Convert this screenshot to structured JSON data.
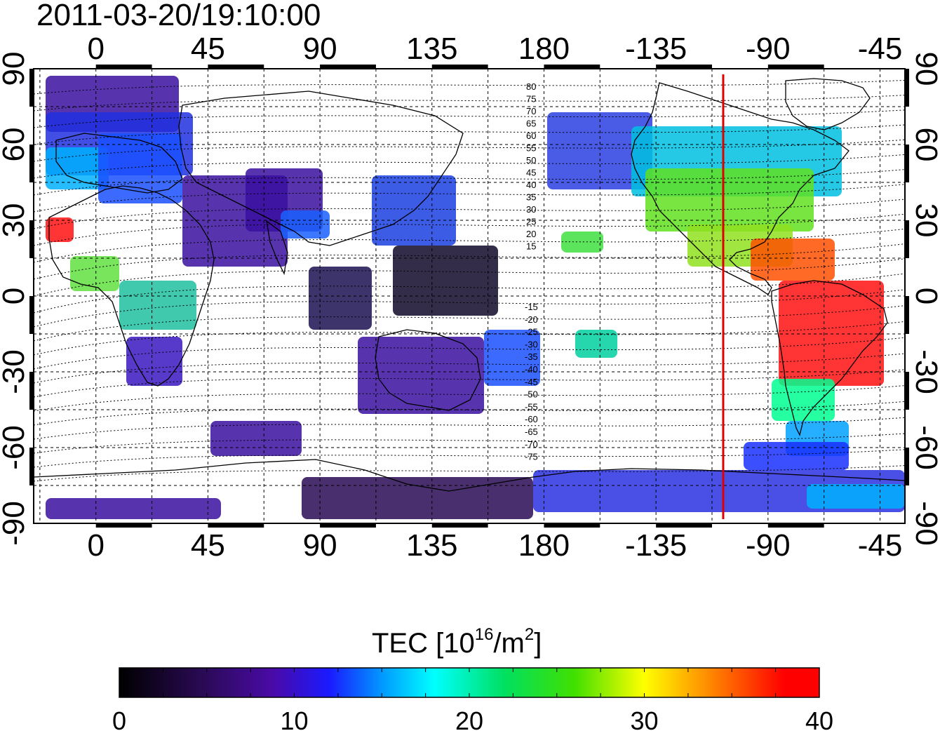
{
  "title": "2011-03-20/19:10:00",
  "map": {
    "lon_ticks": [
      "0",
      "45",
      "90",
      "135",
      "180",
      "-135",
      "-90",
      "-45"
    ],
    "lat_ticks": [
      "90",
      "60",
      "30",
      "0",
      "-30",
      "-60",
      "-90"
    ],
    "lon_range_east": [
      -25,
      325
    ],
    "lat_range": [
      -90,
      90
    ],
    "grid": true,
    "meridian_marker_lon": -108,
    "meridian_marker_color": "#e00000",
    "contour_labels_north": [
      "80",
      "75",
      "70",
      "65",
      "60",
      "55",
      "50",
      "45",
      "40",
      "35",
      "30",
      "25",
      "20",
      "15"
    ],
    "contour_labels_south": [
      "-15",
      "-20",
      "-25",
      "-30",
      "-35",
      "-40",
      "-45",
      "-50",
      "-55",
      "-60",
      "-65",
      "-70",
      "-75"
    ]
  },
  "colorbar": {
    "label_main": "TEC  [10",
    "label_sup": "16",
    "label_mid": "/m",
    "label_sup2": "2",
    "label_end": "]",
    "ticks": [
      "0",
      "10",
      "20",
      "30",
      "40"
    ],
    "range": [
      0,
      40
    ],
    "stops": [
      "#000000",
      "#2a0a55",
      "#4a0aa8",
      "#1a1aff",
      "#00a0ff",
      "#00ffff",
      "#00e060",
      "#40e000",
      "#ffff00",
      "#ff8000",
      "#ff0000"
    ]
  }
}
